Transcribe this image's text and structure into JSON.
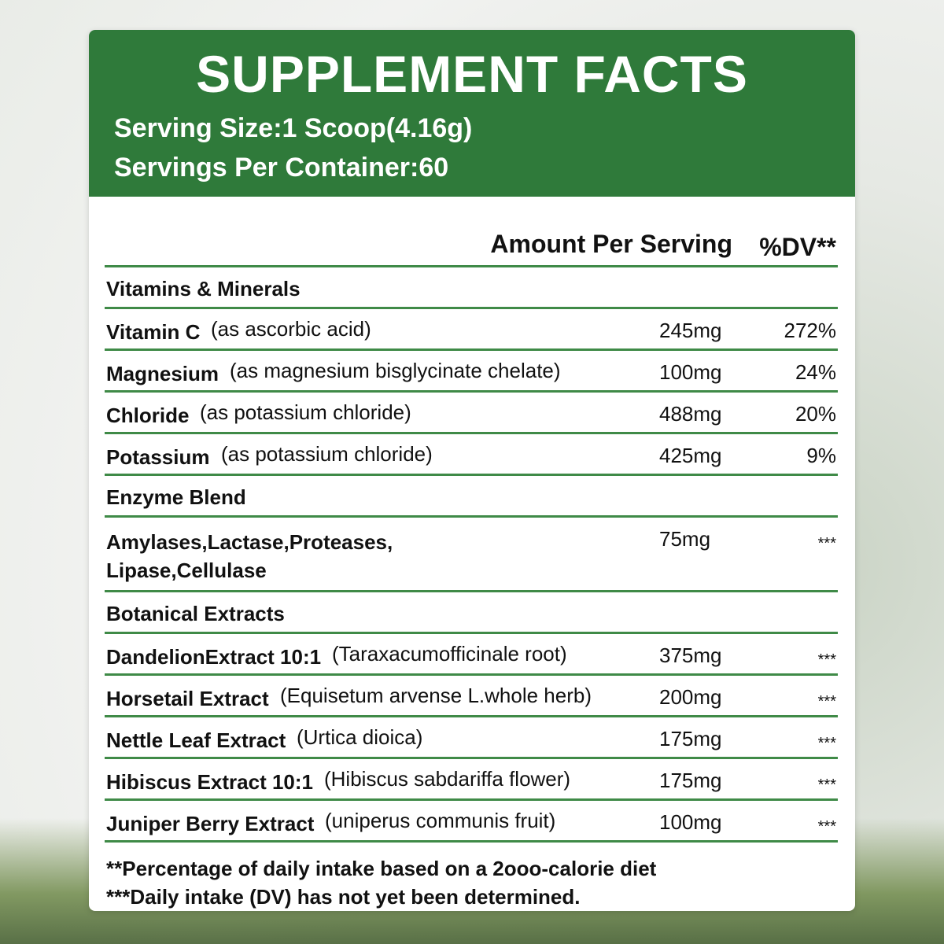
{
  "header": {
    "title": "SUPPLEMENT FACTS",
    "serving_size": "Serving Size:1 Scoop(4.16g)",
    "servings_per_container": "Servings Per Container:60"
  },
  "columns": {
    "amount": "Amount Per Serving",
    "dv": "%DV**"
  },
  "sections": [
    {
      "title": "Vitamins & Minerals",
      "rows": [
        {
          "name": "Vitamin C",
          "source": "(as ascorbic acid)",
          "amount": "245mg",
          "dv": "272%"
        },
        {
          "name": "Magnesium",
          "source": "(as magnesium bisglycinate chelate)",
          "amount": "100mg",
          "dv": "24%"
        },
        {
          "name": "Chloride",
          "source": "(as potassium chloride)",
          "amount": "488mg",
          "dv": "20%"
        },
        {
          "name": "Potassium",
          "source": "(as potassium chloride)",
          "amount": "425mg",
          "dv": "9%"
        }
      ]
    },
    {
      "title": "Enzyme Blend",
      "rows": [
        {
          "name": [
            "Amylases,Lactase,Proteases,",
            "Lipase,Cellulase"
          ],
          "amount": "75mg",
          "dv": "***"
        }
      ]
    },
    {
      "title": "Botanical Extracts",
      "rows": [
        {
          "name": "DandelionExtract 10:1",
          "source": "(Taraxacumofficinale root)",
          "amount": "375mg",
          "dv": "***"
        },
        {
          "name": "Horsetail Extract",
          "source": "(Equisetum arvense L.whole herb)",
          "amount": "200mg",
          "dv": "***"
        },
        {
          "name": "Nettle Leaf Extract",
          "source": "(Urtica dioica)",
          "amount": "175mg",
          "dv": "***"
        },
        {
          "name": "Hibiscus Extract 10:1",
          "source": "(Hibiscus sabdariffa flower)",
          "amount": "175mg",
          "dv": "***"
        },
        {
          "name": "Juniper Berry Extract",
          "source": "(uniperus communis fruit)",
          "amount": "100mg",
          "dv": "***"
        }
      ]
    }
  ],
  "footnotes": [
    "**Percentage of daily intake based on a 2ooo-calorie diet",
    "***Daily intake (DV) has not yet been determined."
  ]
}
